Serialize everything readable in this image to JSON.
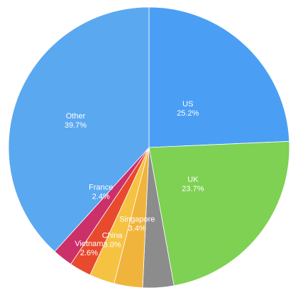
{
  "chart_data": {
    "type": "pie",
    "title": "",
    "start_angle_deg": 0,
    "direction": "clockwise",
    "slices": [
      {
        "key": "us",
        "label": "US",
        "value": 25.2,
        "value_label": "25.2%",
        "color": "#4a9ff5",
        "show_label": true
      },
      {
        "key": "uk",
        "label": "UK",
        "value": 23.7,
        "value_label": "23.7%",
        "color": "#7ed152",
        "show_label": true
      },
      {
        "key": "unlabeled-gray",
        "label": "",
        "value": 3.7,
        "value_label": "",
        "color": "#8c8c8c",
        "show_label": false
      },
      {
        "key": "singapore",
        "label": "Singapore",
        "value": 3.4,
        "value_label": "3.4%",
        "color": "#f0b43c",
        "show_label": true
      },
      {
        "key": "china",
        "label": "China",
        "value": 3.0,
        "value_label": "3.0%",
        "color": "#f5c242",
        "show_label": true
      },
      {
        "key": "vietnam",
        "label": "Vietnam",
        "value": 2.6,
        "value_label": "2.6%",
        "color": "#e84a2e",
        "show_label": true
      },
      {
        "key": "france",
        "label": "France",
        "value": 2.4,
        "value_label": "2.4%",
        "color": "#cc3068",
        "show_label": true
      },
      {
        "key": "other",
        "label": "Other",
        "value": 39.7,
        "value_label": "39.7%",
        "color": "#5aa8f0",
        "show_label": true
      }
    ]
  }
}
